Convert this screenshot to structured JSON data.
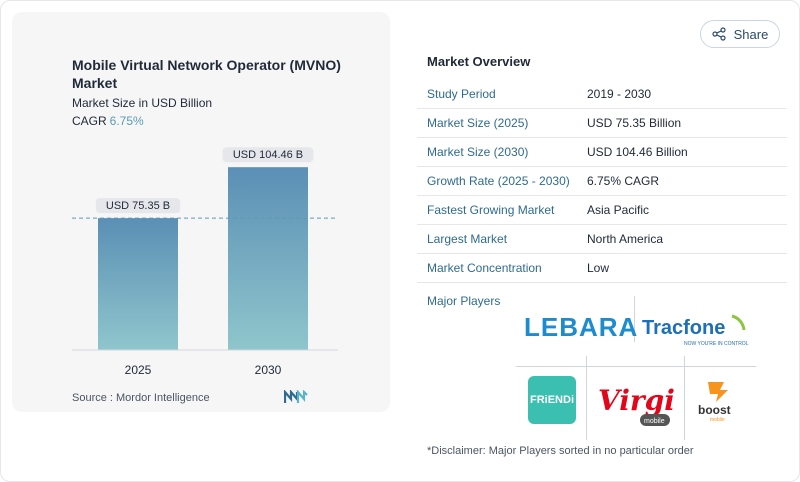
{
  "header": {
    "title": "Mobile Virtual Network Operator (MVNO) Market",
    "subtitle": "Market Size in USD Billion",
    "cagr_label": "CAGR",
    "cagr_value": "6.75%",
    "share_label": "Share"
  },
  "chart_data": {
    "type": "bar",
    "categories": [
      "2025",
      "2030"
    ],
    "values": [
      75.35,
      104.46
    ],
    "data_labels": [
      "USD 75.35 B",
      "USD 104.46 B"
    ],
    "ylim": [
      0,
      120
    ],
    "reference_line_value": 75.35,
    "bar_color_top": "#5b8fb5",
    "bar_color_bottom": "#8fc6cc"
  },
  "source": "Source :  Mordor Intelligence",
  "overview": {
    "title": "Market Overview",
    "rows": [
      {
        "key": "Study Period",
        "value": "2019 - 2030"
      },
      {
        "key": "Market Size (2025)",
        "value": "USD 75.35 Billion"
      },
      {
        "key": "Market Size (2030)",
        "value": "USD 104.46 Billion"
      },
      {
        "key": "Growth Rate (2025 - 2030)",
        "value": "6.75% CAGR"
      },
      {
        "key": "Fastest Growing Market",
        "value": "Asia Pacific"
      },
      {
        "key": "Largest Market",
        "value": "North America"
      },
      {
        "key": "Market Concentration",
        "value": "Low"
      }
    ],
    "major_players_label": "Major Players"
  },
  "logos": {
    "lebara": "LEBARA",
    "tracfone": "Tracfone",
    "tracfone_tagline": "NOW YOU'RE IN CONTROL",
    "friendi": "FRiENDi",
    "virgin": "Virgin",
    "virgin_sub": "mobile",
    "boost": "boost",
    "boost_sub": "mobile"
  },
  "disclaimer": "*Disclaimer: Major Players sorted in no particular order",
  "colors": {
    "accent": "#2f6b8e",
    "cagr": "#5b9bb5",
    "lebara": "#1d8ccf",
    "tracfone": "#1d6fb8",
    "tracfone_ring": "#8cc63f",
    "virgin": "#e1061a",
    "boost": "#f7941d",
    "friendi": "#3bbfb0"
  }
}
